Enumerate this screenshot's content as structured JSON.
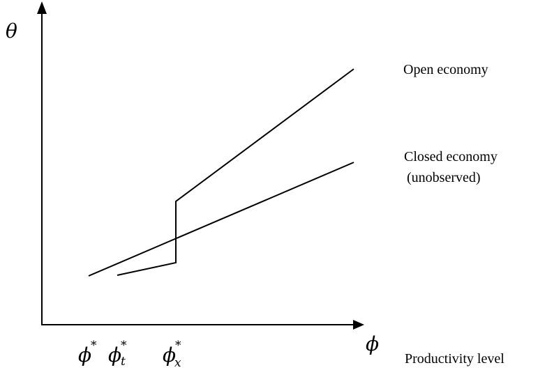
{
  "axes": {
    "y_symbol": "θ",
    "x_symbol": "ϕ",
    "x_caption": "Productivity level"
  },
  "ticks": [
    {
      "base": "ϕ",
      "sup": "*",
      "sub": ""
    },
    {
      "base": "ϕ",
      "sup": "*",
      "sub": "t"
    },
    {
      "base": "ϕ",
      "sup": "*",
      "sub": "x"
    }
  ],
  "curves": {
    "open_label": "Open economy",
    "closed_label_line1": "Closed economy",
    "closed_label_line2": "(unobserved)"
  },
  "colors": {
    "ink": "#000000",
    "background": "#ffffff"
  }
}
